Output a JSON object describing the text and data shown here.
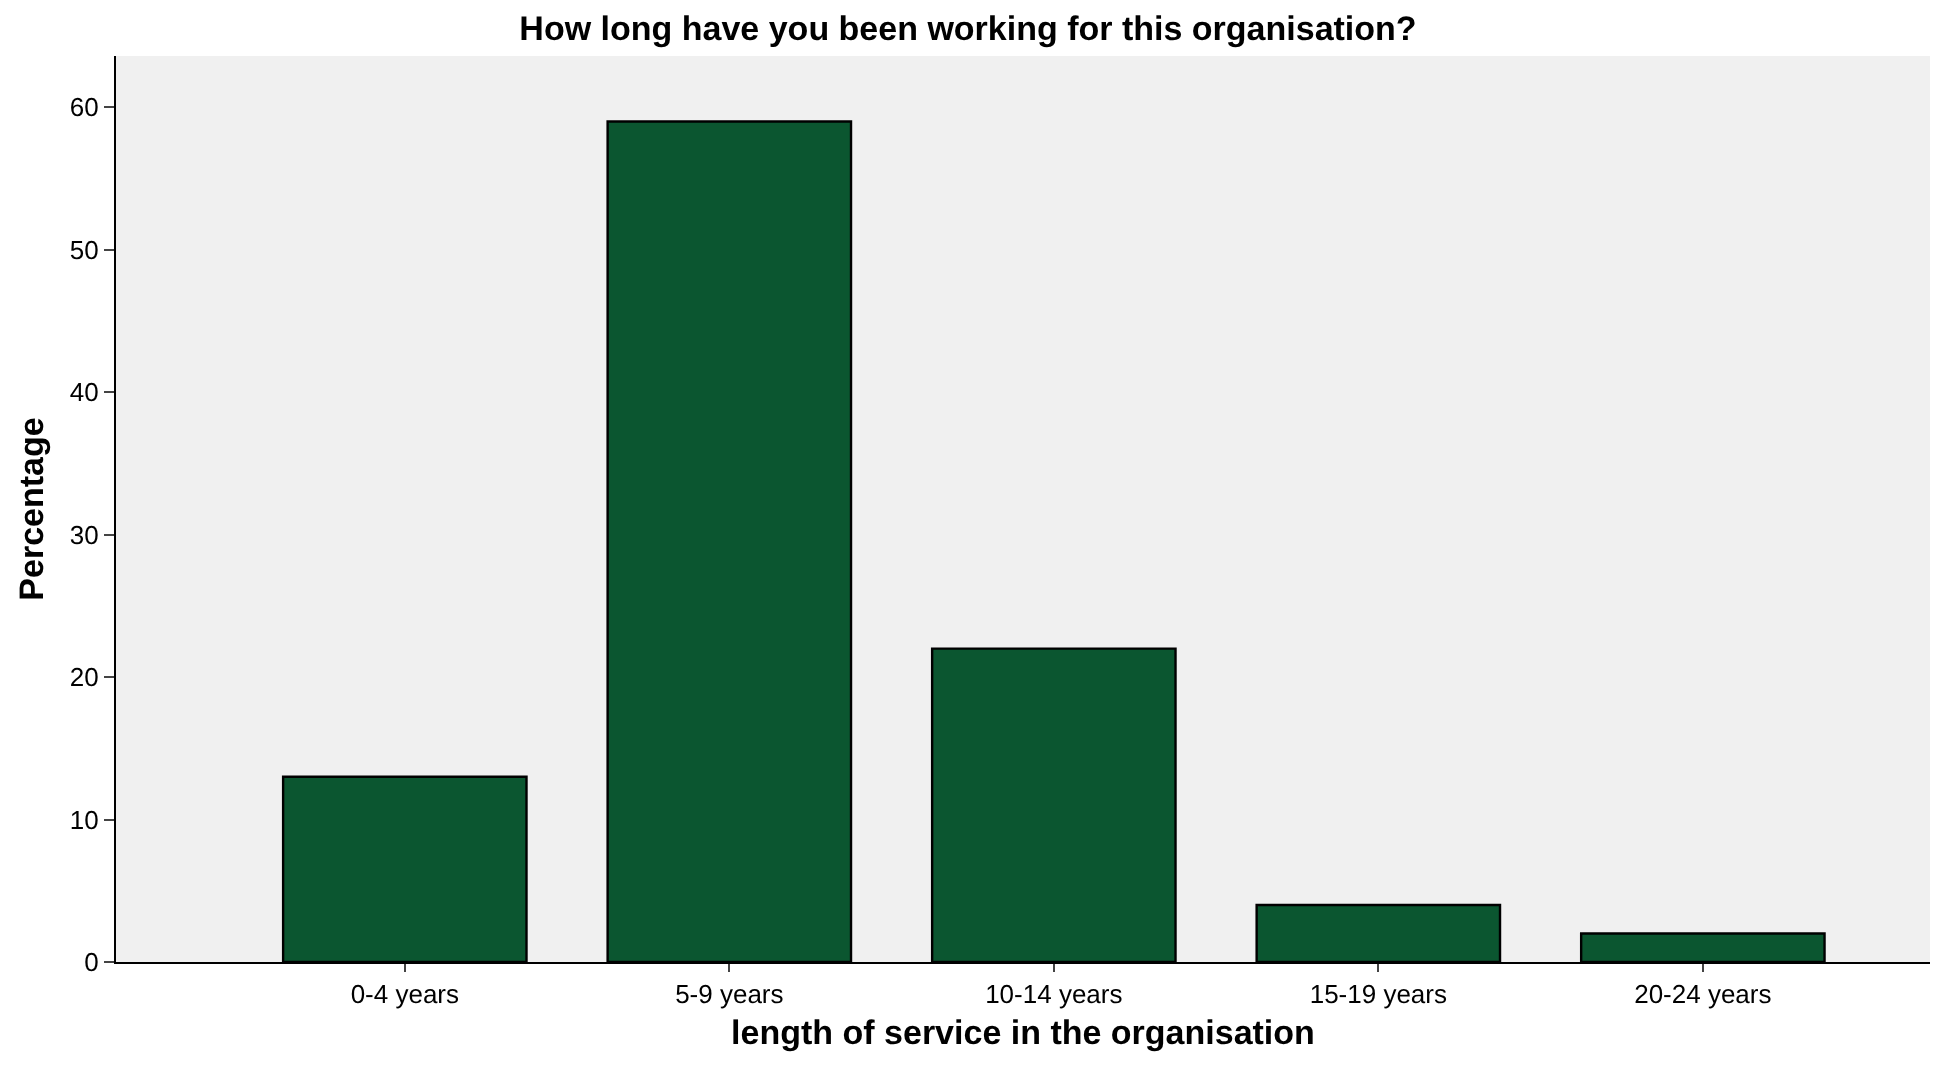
{
  "chart_data": {
    "type": "bar",
    "title": "How long have you been working for this organisation?",
    "xlabel": "length of service in the organisation",
    "ylabel": "Percentage",
    "categories": [
      "0-4 years",
      "5-9 years",
      "10-14 years",
      "15-19 years",
      "20-24 years"
    ],
    "values": [
      13,
      59,
      22,
      4,
      2
    ],
    "color": "#0b5630",
    "ylim": [
      0,
      63.6
    ],
    "yticks": [
      0,
      10,
      20,
      30,
      40,
      50,
      60
    ],
    "grid": false,
    "legend": false
  }
}
